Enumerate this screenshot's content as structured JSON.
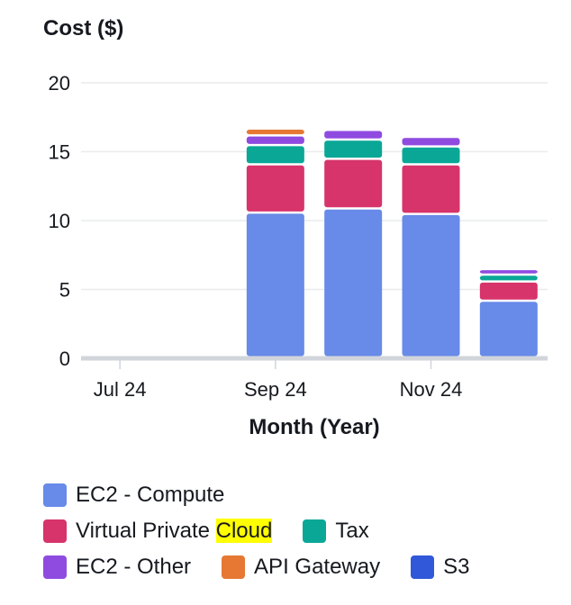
{
  "chart_data": {
    "type": "bar",
    "stacked": true,
    "title": "Cost ($)",
    "ylabel": "Cost ($)",
    "xlabel": "Month (Year)",
    "ylim": [
      0,
      20
    ],
    "yticks": [
      "0",
      "5",
      "10",
      "15",
      "20"
    ],
    "xticks": [
      "Jul 24",
      "Sep 24",
      "Nov 24"
    ],
    "categories": [
      "Jul 24",
      "Aug 24",
      "Sep 24",
      "Oct 24",
      "Nov 24",
      "Dec 24"
    ],
    "grid": true,
    "legend_position": "bottom",
    "series": [
      {
        "name": "EC2 - Compute",
        "color": "#688ae8",
        "values": [
          0,
          0,
          10.5,
          10.8,
          10.4,
          4.1
        ]
      },
      {
        "name": "Virtual Private Cloud",
        "color": "#d7346b",
        "values": [
          0,
          0,
          3.5,
          3.6,
          3.6,
          1.4
        ]
      },
      {
        "name": "Tax",
        "color": "#0aa797",
        "values": [
          0,
          0,
          1.4,
          1.4,
          1.3,
          0.5
        ]
      },
      {
        "name": "EC2 - Other",
        "color": "#8f4be0",
        "values": [
          0,
          0,
          0.7,
          0.7,
          0.7,
          0.4
        ]
      },
      {
        "name": "API Gateway",
        "color": "#e67834",
        "values": [
          0,
          0,
          0.5,
          0,
          0,
          0
        ]
      },
      {
        "name": "S3",
        "color": "#3058d8",
        "values": [
          0,
          0,
          0,
          0,
          0,
          0
        ]
      }
    ]
  },
  "legend": {
    "rows": [
      [
        {
          "label": "EC2 - Compute",
          "color": "#688ae8"
        }
      ],
      [
        {
          "label_pre": "Virtual Private ",
          "label_hl": "Cloud",
          "color": "#d7346b"
        },
        {
          "label": "Tax",
          "color": "#0aa797"
        }
      ],
      [
        {
          "label": "EC2 - Other",
          "color": "#8f4be0"
        },
        {
          "label": "API Gateway",
          "color": "#e67834"
        },
        {
          "label": "S3",
          "color": "#3058d8"
        }
      ]
    ]
  }
}
